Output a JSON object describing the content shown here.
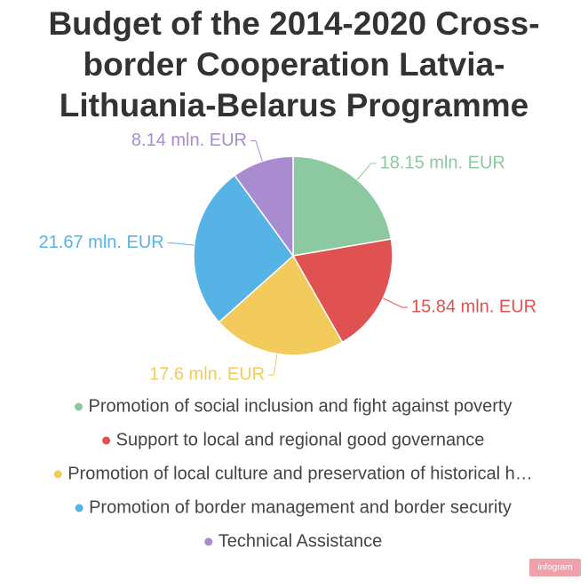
{
  "chart_data": {
    "type": "pie",
    "title": "Budget of the 2014-2020 Cross-border Cooperation Latvia-Lithuania-Belarus Programme",
    "categories": [
      "Promotion of social inclusion and fight against poverty",
      "Support to local and regional good governance",
      "Promotion of local culture and preservation of historical h…",
      "Promotion of border management and border security",
      "Technical Assistance"
    ],
    "values": [
      18.15,
      15.84,
      17.6,
      21.67,
      8.14
    ],
    "value_labels": [
      "18.15 mln. EUR",
      "15.84 mln. EUR",
      "17.6 mln. EUR",
      "21.67 mln. EUR",
      "8.14 mln. EUR"
    ],
    "colors": [
      "#8cc9a0",
      "#e05252",
      "#f2cb5c",
      "#57b3e6",
      "#a98bd0"
    ],
    "branding": "infogram"
  }
}
